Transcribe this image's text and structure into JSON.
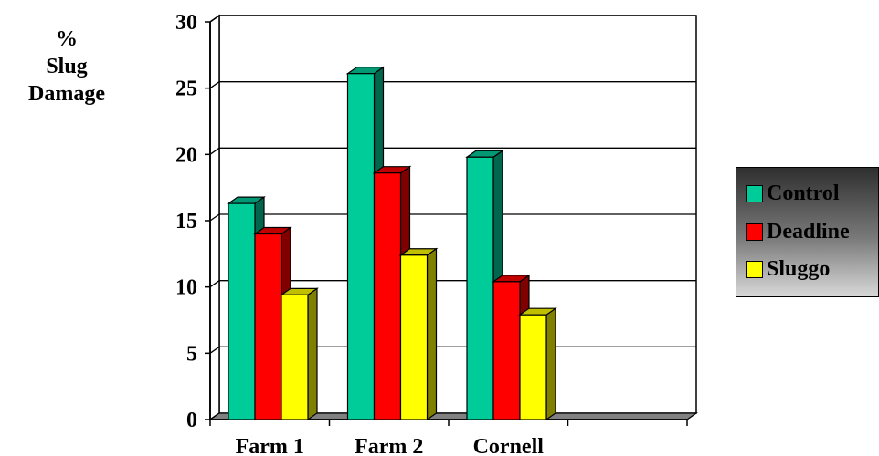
{
  "chart_data": {
    "type": "bar",
    "categories": [
      "Farm 1",
      "Farm 2",
      "Cornell",
      ""
    ],
    "series": [
      {
        "name": "Control",
        "values": [
          16.3,
          26.1,
          19.8,
          null
        ],
        "color": "#00cc99"
      },
      {
        "name": "Deadline",
        "values": [
          14.0,
          18.6,
          10.4,
          null
        ],
        "color": "#ff0000"
      },
      {
        "name": "Sluggo",
        "values": [
          9.4,
          12.4,
          7.9,
          null
        ],
        "color": "#ffff00"
      }
    ],
    "ylabel": [
      "%",
      "Slug",
      "Damage"
    ],
    "xlabel": "",
    "ylim": [
      0,
      30
    ],
    "yticks": [
      "0",
      "5",
      "10",
      "15",
      "20",
      "25",
      "30"
    ],
    "grid": true,
    "legend_position": "right",
    "style": "3d-bar"
  }
}
